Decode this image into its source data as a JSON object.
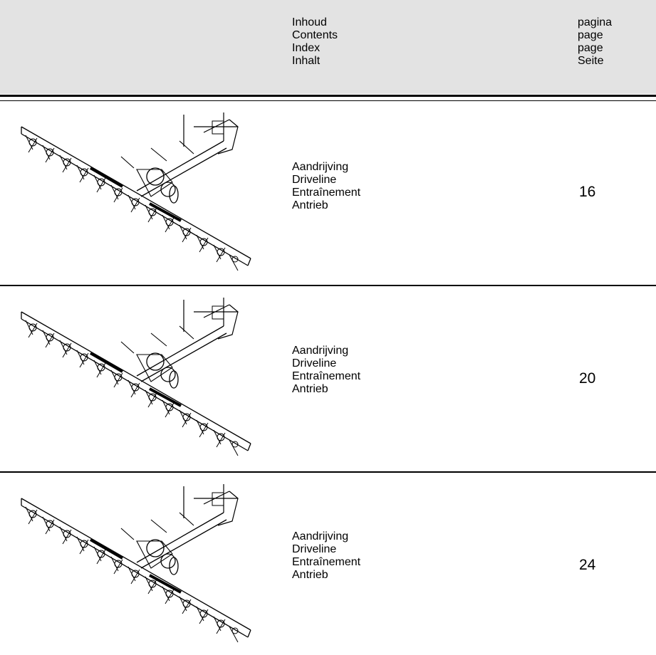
{
  "header": {
    "contents_labels": [
      "Inhoud",
      "Contents",
      "Index",
      "Inhalt"
    ],
    "page_labels": [
      "pagina",
      "page",
      "page",
      "Seite"
    ]
  },
  "rows": [
    {
      "titles": [
        "Aandrijving",
        "Driveline",
        "Entraînement",
        "Antrieb"
      ],
      "page": "16"
    },
    {
      "titles": [
        "Aandrijving",
        "Driveline",
        "Entraînement",
        "Antrieb"
      ],
      "page": "20"
    },
    {
      "titles": [
        "Aandrijving",
        "Driveline",
        "Entraînement",
        "Antrieb"
      ],
      "page": "24"
    }
  ]
}
